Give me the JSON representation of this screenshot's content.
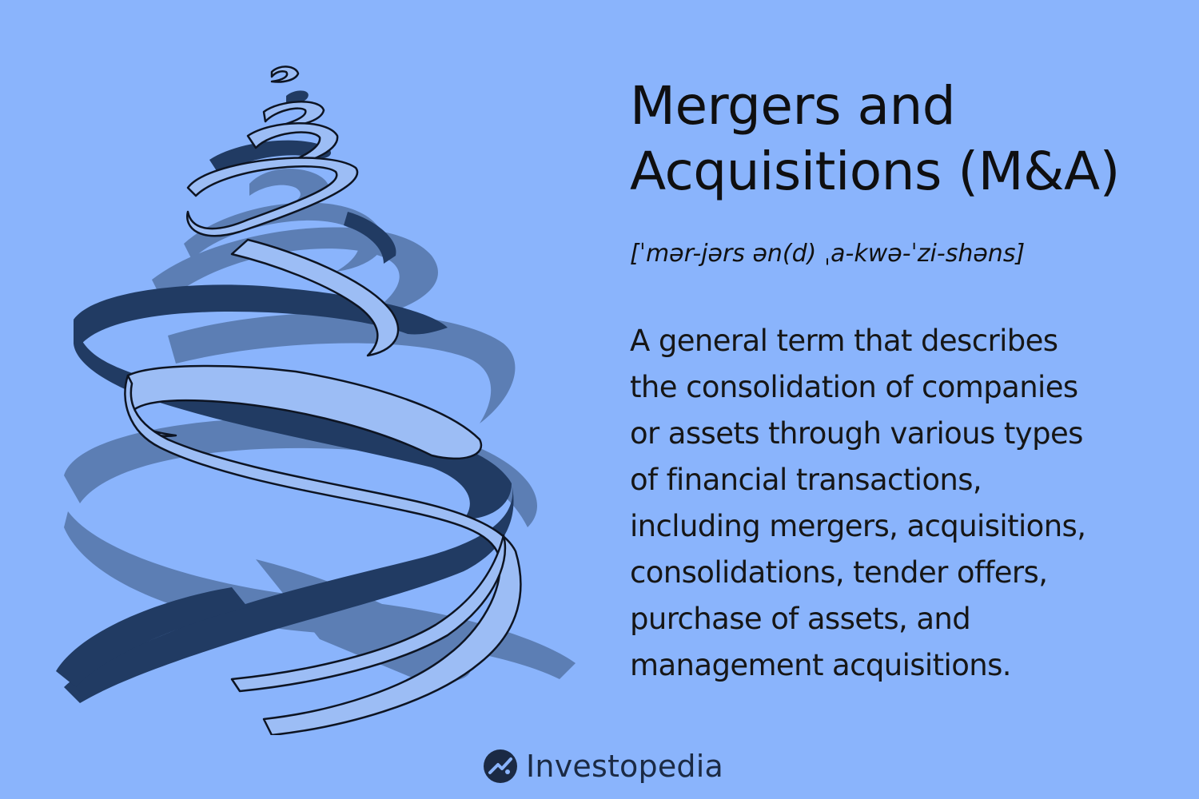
{
  "page": {
    "background": "#8ab4fc"
  },
  "title": {
    "line1": "Mergers and",
    "line2": "Acquisitions (M&A)"
  },
  "pronunciation": "[ˈmər-jərs ən(d) ˌa-kwə-ˈzi-shəns]",
  "definition": {
    "lines": [
      "A general term that describes",
      "the consolidation of companies",
      "or assets through various types",
      "of financial transactions,",
      "including mergers, acquisitions,",
      "consolidations, tender offers,",
      "purchase of assets, and",
      "management acquisitions."
    ]
  },
  "illustration": {
    "icon": "intertwined-ribbon-spiral",
    "colors": {
      "dark_ribbon": "#213b63",
      "mid_ribbon": "#5c7eb4",
      "light_ribbon": "#9cbdf5",
      "outline": "#0d1422"
    }
  },
  "brand": {
    "name": "Investopedia",
    "icon": "investopedia-logo-icon",
    "color": "#1b2a44"
  }
}
